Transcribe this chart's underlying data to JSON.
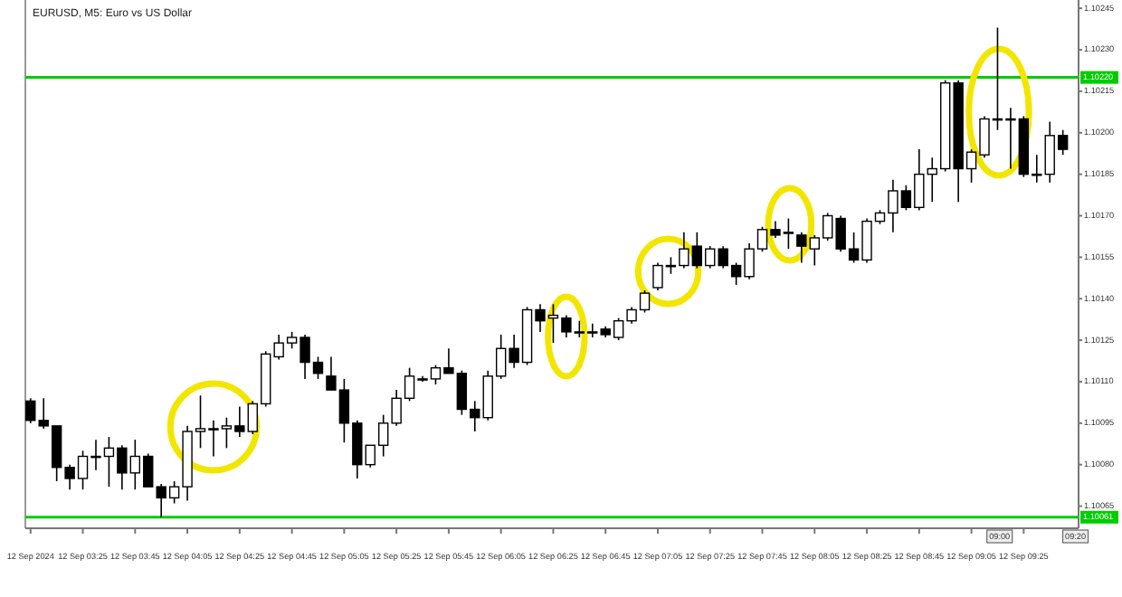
{
  "chart_data": {
    "type": "candlestick",
    "title": "EURUSD, M5:  Euro vs US Dollar",
    "x": [
      "2024-09-12T03:05",
      "2024-09-12T03:10",
      "2024-09-12T03:15",
      "2024-09-12T03:20",
      "2024-09-12T03:25",
      "2024-09-12T03:30",
      "2024-09-12T03:35",
      "2024-09-12T03:40",
      "2024-09-12T03:45",
      "2024-09-12T03:50",
      "2024-09-12T03:55",
      "2024-09-12T04:00",
      "2024-09-12T04:05",
      "2024-09-12T04:10",
      "2024-09-12T04:15",
      "2024-09-12T04:20",
      "2024-09-12T04:25",
      "2024-09-12T04:30",
      "2024-09-12T04:35",
      "2024-09-12T04:40",
      "2024-09-12T04:45",
      "2024-09-12T04:50",
      "2024-09-12T04:55",
      "2024-09-12T05:00",
      "2024-09-12T05:05",
      "2024-09-12T05:10",
      "2024-09-12T05:15",
      "2024-09-12T05:20",
      "2024-09-12T05:25",
      "2024-09-12T05:30",
      "2024-09-12T05:35",
      "2024-09-12T05:40",
      "2024-09-12T05:45",
      "2024-09-12T05:50",
      "2024-09-12T05:55",
      "2024-09-12T06:00",
      "2024-09-12T06:05",
      "2024-09-12T06:10",
      "2024-09-12T06:15",
      "2024-09-12T06:20",
      "2024-09-12T06:25",
      "2024-09-12T06:30",
      "2024-09-12T06:35",
      "2024-09-12T06:40",
      "2024-09-12T06:45",
      "2024-09-12T06:50",
      "2024-09-12T06:55",
      "2024-09-12T07:00",
      "2024-09-12T07:05",
      "2024-09-12T07:10",
      "2024-09-12T07:15",
      "2024-09-12T07:20",
      "2024-09-12T07:25",
      "2024-09-12T07:30",
      "2024-09-12T07:35",
      "2024-09-12T07:40",
      "2024-09-12T07:45",
      "2024-09-12T07:50",
      "2024-09-12T07:55",
      "2024-09-12T08:00",
      "2024-09-12T08:05",
      "2024-09-12T08:10",
      "2024-09-12T08:15",
      "2024-09-12T08:20",
      "2024-09-12T08:25",
      "2024-09-12T08:30",
      "2024-09-12T08:35",
      "2024-09-12T08:40",
      "2024-09-12T08:45",
      "2024-09-12T08:50",
      "2024-09-12T08:55",
      "2024-09-12T09:00",
      "2024-09-12T09:05",
      "2024-09-12T09:10",
      "2024-09-12T09:15",
      "2024-09-12T09:20",
      "2024-09-12T09:25",
      "2024-09-12T09:30",
      "2024-09-12T09:35",
      "2024-09-12T09:40"
    ],
    "ohlc": [
      [
        1.10103,
        1.10104,
        1.10095,
        1.10096
      ],
      [
        1.10096,
        1.10104,
        1.10093,
        1.10094
      ],
      [
        1.10094,
        1.10094,
        1.10074,
        1.10079
      ],
      [
        1.10079,
        1.1008,
        1.10071,
        1.10075
      ],
      [
        1.10075,
        1.10085,
        1.10071,
        1.10083
      ],
      [
        1.10083,
        1.10089,
        1.10078,
        1.10083
      ],
      [
        1.10083,
        1.1009,
        1.10072,
        1.10086
      ],
      [
        1.10086,
        1.10087,
        1.10071,
        1.10077
      ],
      [
        1.10077,
        1.10089,
        1.10071,
        1.10083
      ],
      [
        1.10083,
        1.10084,
        1.10072,
        1.10072
      ],
      [
        1.10072,
        1.10073,
        1.10061,
        1.10068
      ],
      [
        1.10068,
        1.10074,
        1.10066,
        1.10072
      ],
      [
        1.10072,
        1.10094,
        1.10067,
        1.10092
      ],
      [
        1.10092,
        1.10105,
        1.10086,
        1.10093
      ],
      [
        1.10093,
        1.10096,
        1.10083,
        1.10093
      ],
      [
        1.10093,
        1.10097,
        1.10086,
        1.10094
      ],
      [
        1.10094,
        1.10101,
        1.1009,
        1.10092
      ],
      [
        1.10092,
        1.10103,
        1.10091,
        1.10102
      ],
      [
        1.10102,
        1.10121,
        1.10101,
        1.1012
      ],
      [
        1.10119,
        1.10127,
        1.10118,
        1.10124
      ],
      [
        1.10124,
        1.10128,
        1.10122,
        1.10126
      ],
      [
        1.10126,
        1.10127,
        1.10111,
        1.10117
      ],
      [
        1.10117,
        1.10119,
        1.10111,
        1.10113
      ],
      [
        1.10112,
        1.10119,
        1.10107,
        1.10107
      ],
      [
        1.10107,
        1.10111,
        1.10088,
        1.10095
      ],
      [
        1.10095,
        1.10096,
        1.10075,
        1.1008
      ],
      [
        1.1008,
        1.10087,
        1.10079,
        1.10087
      ],
      [
        1.10087,
        1.10098,
        1.10083,
        1.10095
      ],
      [
        1.10095,
        1.10107,
        1.10094,
        1.10104
      ],
      [
        1.10104,
        1.10115,
        1.10103,
        1.10112
      ],
      [
        1.10111,
        1.10112,
        1.1011,
        1.10111
      ],
      [
        1.10111,
        1.10116,
        1.10109,
        1.10115
      ],
      [
        1.10115,
        1.10122,
        1.10113,
        1.10113
      ],
      [
        1.10113,
        1.10114,
        1.10098,
        1.101
      ],
      [
        1.101,
        1.10103,
        1.10092,
        1.10097
      ],
      [
        1.10097,
        1.10114,
        1.10096,
        1.10112
      ],
      [
        1.10112,
        1.10127,
        1.10111,
        1.10122
      ],
      [
        1.10122,
        1.10127,
        1.10115,
        1.10117
      ],
      [
        1.10117,
        1.10137,
        1.10116,
        1.10136
      ],
      [
        1.10136,
        1.10138,
        1.10128,
        1.10132
      ],
      [
        1.10133,
        1.10138,
        1.10124,
        1.10134
      ],
      [
        1.10133,
        1.10134,
        1.10126,
        1.10128
      ],
      [
        1.10128,
        1.10132,
        1.10126,
        1.10128
      ],
      [
        1.10128,
        1.10131,
        1.10126,
        1.10128
      ],
      [
        1.10129,
        1.1013,
        1.10126,
        1.10127
      ],
      [
        1.10126,
        1.10133,
        1.10125,
        1.10132
      ],
      [
        1.10132,
        1.10137,
        1.10131,
        1.10136
      ],
      [
        1.10136,
        1.10143,
        1.10135,
        1.10142
      ],
      [
        1.10144,
        1.10153,
        1.10143,
        1.10152
      ],
      [
        1.10152,
        1.10155,
        1.10149,
        1.10152
      ],
      [
        1.10152,
        1.10164,
        1.10151,
        1.10158
      ],
      [
        1.10159,
        1.10164,
        1.10151,
        1.10152
      ],
      [
        1.10152,
        1.10159,
        1.10151,
        1.10158
      ],
      [
        1.10158,
        1.10159,
        1.10151,
        1.10152
      ],
      [
        1.10152,
        1.10153,
        1.10145,
        1.10148
      ],
      [
        1.10148,
        1.1016,
        1.10147,
        1.10158
      ],
      [
        1.10158,
        1.10166,
        1.10157,
        1.10165
      ],
      [
        1.10165,
        1.10168,
        1.10162,
        1.10163
      ],
      [
        1.10164,
        1.10169,
        1.10158,
        1.10164
      ],
      [
        1.10163,
        1.10164,
        1.10153,
        1.10159
      ],
      [
        1.10158,
        1.10163,
        1.10152,
        1.10162
      ],
      [
        1.10162,
        1.10171,
        1.10161,
        1.1017
      ],
      [
        1.10169,
        1.1017,
        1.10157,
        1.10158
      ],
      [
        1.10158,
        1.10164,
        1.10153,
        1.10154
      ],
      [
        1.10154,
        1.10169,
        1.10153,
        1.10168
      ],
      [
        1.10168,
        1.10172,
        1.10167,
        1.10171
      ],
      [
        1.10171,
        1.10183,
        1.10164,
        1.10179
      ],
      [
        1.10179,
        1.10181,
        1.10172,
        1.10173
      ],
      [
        1.10173,
        1.10194,
        1.10172,
        1.10185
      ],
      [
        1.10185,
        1.10191,
        1.10175,
        1.10187
      ],
      [
        1.10187,
        1.10219,
        1.10186,
        1.10218
      ],
      [
        1.10218,
        1.10219,
        1.10175,
        1.10187
      ],
      [
        1.10187,
        1.10194,
        1.10182,
        1.10193
      ],
      [
        1.10192,
        1.10206,
        1.10191,
        1.10205
      ],
      [
        1.10205,
        1.10238,
        1.10201,
        1.10205
      ],
      [
        1.10205,
        1.10209,
        1.10187,
        1.10205
      ],
      [
        1.10205,
        1.10206,
        1.10184,
        1.10185
      ],
      [
        1.10185,
        1.10192,
        1.10182,
        1.10185
      ],
      [
        1.10185,
        1.10204,
        1.10182,
        1.10199
      ],
      [
        1.10199,
        1.10201,
        1.10192,
        1.10194
      ]
    ],
    "xlim": [
      "2024-09-12T03:03",
      "2024-09-12T09:46"
    ],
    "xticks": [
      {
        "value": "2024-09-12T03:05",
        "label": "12 Sep 2024"
      },
      {
        "value": "2024-09-12T03:25",
        "label": "12 Sep 03:25"
      },
      {
        "value": "2024-09-12T03:45",
        "label": "12 Sep 03:45"
      },
      {
        "value": "2024-09-12T04:05",
        "label": "12 Sep 04:05"
      },
      {
        "value": "2024-09-12T04:25",
        "label": "12 Sep 04:25"
      },
      {
        "value": "2024-09-12T04:45",
        "label": "12 Sep 04:45"
      },
      {
        "value": "2024-09-12T05:05",
        "label": "12 Sep 05:05"
      },
      {
        "value": "2024-09-12T05:25",
        "label": "12 Sep 05:25"
      },
      {
        "value": "2024-09-12T05:45",
        "label": "12 Sep 05:45"
      },
      {
        "value": "2024-09-12T06:05",
        "label": "12 Sep 06:05"
      },
      {
        "value": "2024-09-12T06:25",
        "label": "12 Sep 06:25"
      },
      {
        "value": "2024-09-12T06:45",
        "label": "12 Sep 06:45"
      },
      {
        "value": "2024-09-12T07:05",
        "label": "12 Sep 07:05"
      },
      {
        "value": "2024-09-12T07:25",
        "label": "12 Sep 07:25"
      },
      {
        "value": "2024-09-12T07:45",
        "label": "12 Sep 07:45"
      },
      {
        "value": "2024-09-12T08:05",
        "label": "12 Sep 08:05"
      },
      {
        "value": "2024-09-12T08:25",
        "label": "12 Sep 08:25"
      },
      {
        "value": "2024-09-12T08:45",
        "label": "12 Sep 08:45"
      },
      {
        "value": "2024-09-12T09:05",
        "label": "12 Sep 09:05"
      },
      {
        "value": "2024-09-12T09:25",
        "label": "12 Sep 09:25"
      }
    ],
    "ylim": [
      1.10057,
      1.10248
    ],
    "yticks": [
      {
        "value": 1.10065,
        "label": "1.10065"
      },
      {
        "value": 1.1008,
        "label": "1.10080"
      },
      {
        "value": 1.10095,
        "label": "1.10095"
      },
      {
        "value": 1.1011,
        "label": "1.10110"
      },
      {
        "value": 1.10125,
        "label": "1.10125"
      },
      {
        "value": 1.1014,
        "label": "1.10140"
      },
      {
        "value": 1.10155,
        "label": "1.10155"
      },
      {
        "value": 1.1017,
        "label": "1.10170"
      },
      {
        "value": 1.10185,
        "label": "1.10185"
      },
      {
        "value": 1.102,
        "label": "1.10200"
      },
      {
        "value": 1.10215,
        "label": "1.10215"
      },
      {
        "value": 1.1023,
        "label": "1.10230"
      },
      {
        "value": 1.10245,
        "label": "1.10245"
      }
    ],
    "ref_lines": [
      {
        "axis": "y",
        "value": 1.1022,
        "label": "1.10220",
        "color": "#00cc00"
      },
      {
        "axis": "y",
        "value": 1.10061,
        "label": "1.10061",
        "color": "#00cc00"
      }
    ],
    "annotations": [
      "09:00",
      "09:20"
    ]
  }
}
